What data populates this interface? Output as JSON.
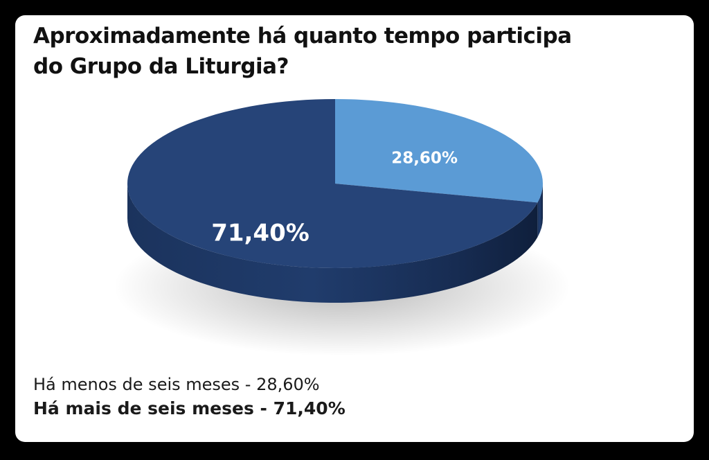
{
  "chart_data": {
    "type": "pie",
    "title_lines": [
      "Aproximadamente há quanto tempo participa",
      "do Grupo da Liturgia?"
    ],
    "slices": [
      {
        "label": "Há menos de seis meses",
        "value": 28.6,
        "data_label": "28,60%",
        "color": "#5b9bd5"
      },
      {
        "label": "Há mais de seis meses",
        "value": 71.4,
        "data_label": "71,40%",
        "color": "#264478"
      }
    ],
    "legend": {
      "placement": "bottom-left",
      "items": [
        "Há menos de seis meses - 28,60%",
        "Há mais de seis meses - 71,40%"
      ]
    },
    "style": "3d"
  }
}
